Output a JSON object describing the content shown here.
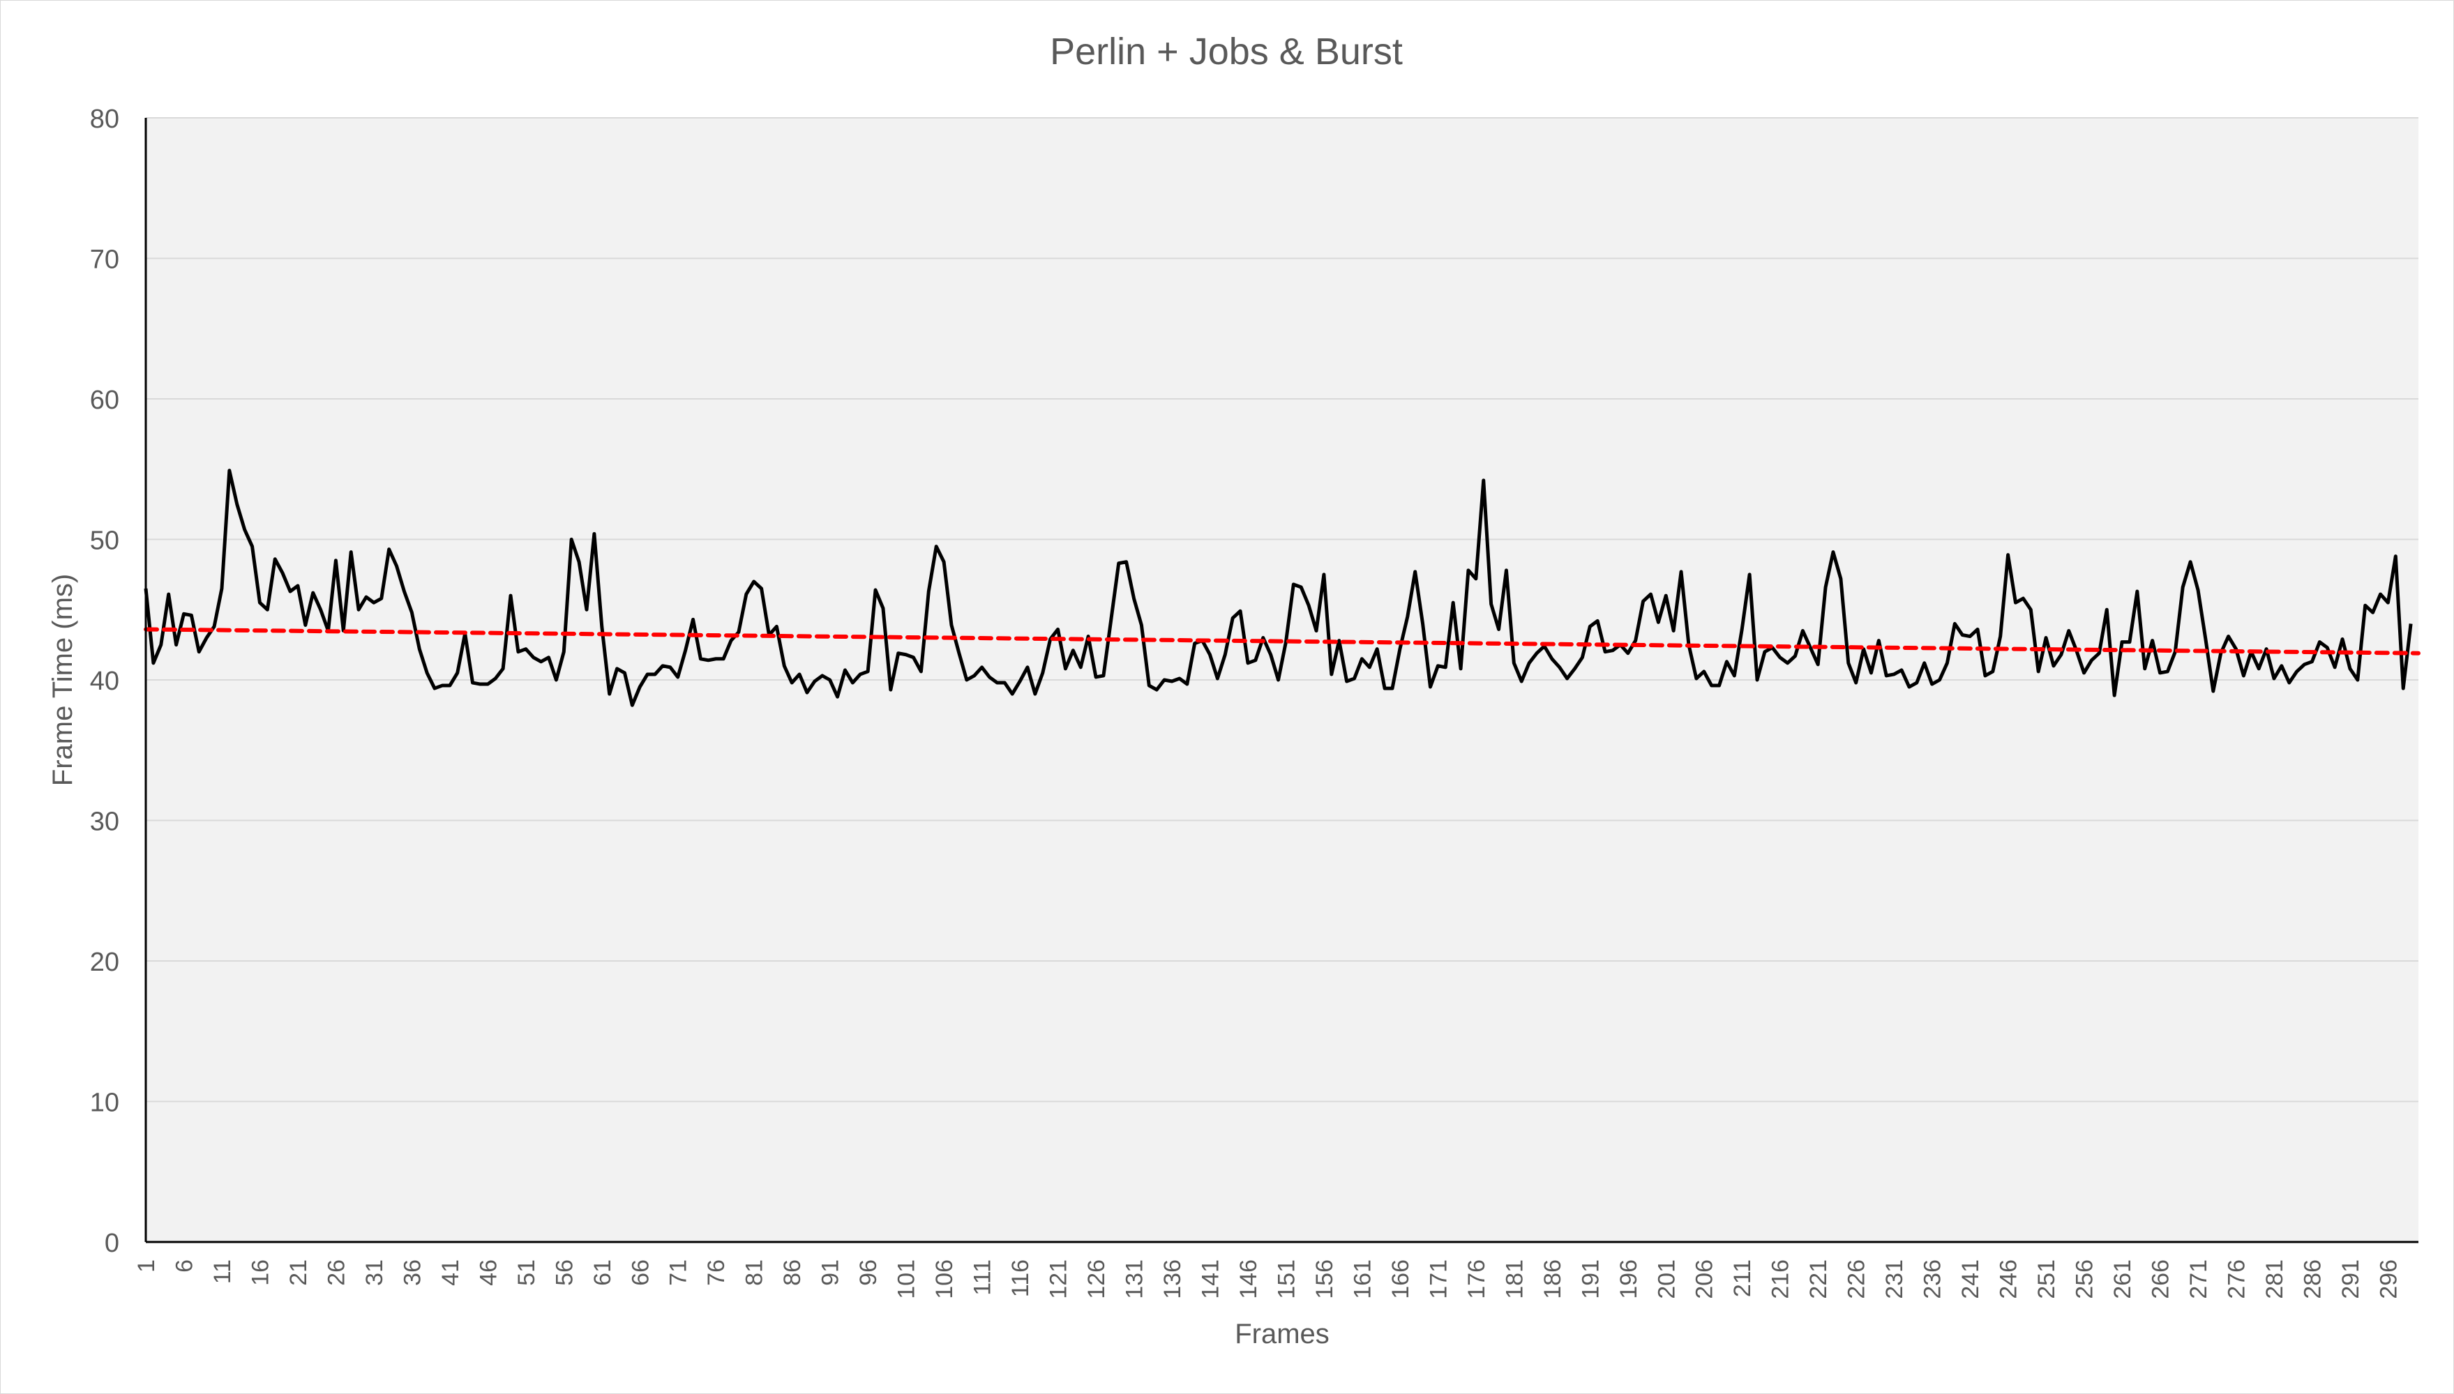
{
  "chart_data": {
    "type": "line",
    "title": "Perlin + Jobs & Burst",
    "xlabel": "Frames",
    "ylabel": "Frame Time (ms)",
    "ylim": [
      0,
      80
    ],
    "yticks": [
      0,
      10,
      20,
      30,
      40,
      50,
      60,
      70,
      80
    ],
    "xlim": [
      1,
      300
    ],
    "x_tick_labels": [
      "1",
      "6",
      "11",
      "16",
      "21",
      "26",
      "31",
      "36",
      "41",
      "46",
      "51",
      "56",
      "61",
      "66",
      "71",
      "76",
      "81",
      "86",
      "91",
      "96",
      "101",
      "106",
      "111",
      "116",
      "121",
      "126",
      "131",
      "136",
      "141",
      "146",
      "151",
      "156",
      "161",
      "166",
      "171",
      "176",
      "181",
      "186",
      "191",
      "196",
      "201",
      "206",
      "211",
      "216",
      "221",
      "226",
      "231",
      "236",
      "241",
      "246",
      "251",
      "256",
      "261",
      "266",
      "271",
      "276",
      "281",
      "286",
      "291",
      "296"
    ],
    "grid": "horizontal",
    "legend": "none",
    "colors": {
      "series": "#000000",
      "trend": "#ff0000",
      "plot_bg": "#f2f2f2",
      "grid": "#d9d9d9",
      "text": "#595959"
    },
    "series": [
      {
        "values": [
          46.5,
          41.2,
          42.5,
          46.1,
          42.5,
          44.7,
          44.6,
          42.0,
          43.0,
          43.8,
          46.5,
          54.9,
          52.5,
          50.7,
          49.5,
          45.5,
          45.0,
          48.6,
          47.6,
          46.3,
          46.7,
          43.9,
          46.2,
          45.0,
          43.5,
          48.5,
          43.5,
          49.1,
          45.0,
          45.9,
          45.5,
          45.8,
          49.3,
          48.1,
          46.3,
          44.8,
          42.2,
          40.5,
          39.4,
          39.6,
          39.6,
          40.5,
          43.3,
          39.8,
          39.7,
          39.7,
          40.1,
          40.8,
          46.0,
          42.0,
          42.2,
          41.6,
          41.3,
          41.6,
          40.0,
          42.0,
          50.0,
          48.4,
          45.0,
          50.4,
          43.8,
          39.0,
          40.8,
          40.5,
          38.2,
          39.5,
          40.4,
          40.4,
          41.0,
          40.9,
          40.2,
          42.1,
          44.3,
          41.5,
          41.4,
          41.5,
          41.5,
          42.8,
          43.4,
          46.1,
          47.0,
          46.5,
          43.2,
          43.8,
          41.0,
          39.8,
          40.4,
          39.1,
          39.9,
          40.3,
          40.0,
          38.8,
          40.7,
          39.8,
          40.4,
          40.6,
          46.4,
          45.1,
          39.3,
          41.9,
          41.8,
          41.6,
          40.6,
          46.3,
          49.5,
          48.4,
          43.9,
          41.9,
          40.0,
          40.3,
          40.9,
          40.2,
          39.8,
          39.8,
          39.0,
          39.9,
          40.9,
          39.0,
          40.5,
          42.9,
          43.6,
          40.8,
          42.1,
          40.9,
          43.1,
          40.2,
          40.3,
          44.3,
          48.3,
          48.4,
          45.8,
          43.9,
          39.6,
          39.3,
          40.0,
          39.9,
          40.1,
          39.7,
          42.6,
          42.8,
          41.8,
          40.1,
          41.8,
          44.4,
          44.9,
          41.2,
          41.4,
          43.0,
          41.8,
          40.0,
          42.7,
          46.8,
          46.6,
          45.3,
          43.5,
          47.5,
          40.4,
          42.8,
          39.9,
          40.1,
          41.5,
          40.9,
          42.2,
          39.4,
          39.4,
          42.2,
          44.5,
          47.7,
          44.0,
          39.5,
          41.0,
          40.9,
          45.5,
          40.8,
          47.8,
          47.2,
          54.2,
          45.4,
          43.6,
          47.8,
          41.2,
          39.9,
          41.2,
          41.9,
          42.4,
          41.5,
          40.9,
          40.1,
          40.8,
          41.6,
          43.8,
          44.2,
          42.0,
          42.1,
          42.5,
          41.9,
          42.8,
          45.6,
          46.1,
          44.1,
          46.0,
          43.5,
          47.7,
          42.5,
          40.1,
          40.6,
          39.6,
          39.6,
          41.3,
          40.3,
          43.6,
          47.5,
          40.0,
          42.0,
          42.3,
          41.6,
          41.2,
          41.7,
          43.5,
          42.3,
          41.1,
          46.6,
          49.1,
          47.2,
          41.2,
          39.8,
          42.2,
          40.5,
          42.8,
          40.3,
          40.4,
          40.7,
          39.5,
          39.8,
          41.2,
          39.7,
          40.0,
          41.2,
          44.0,
          43.2,
          43.1,
          43.6,
          40.3,
          40.6,
          43.1,
          48.9,
          45.5,
          45.8,
          45.0,
          40.6,
          43.0,
          41.0,
          41.8,
          43.5,
          42.1,
          40.5,
          41.4,
          41.9,
          45.0,
          38.9,
          42.7,
          42.7,
          46.3,
          40.8,
          42.8,
          40.5,
          40.6,
          42.0,
          46.6,
          48.4,
          46.4,
          42.9,
          39.2,
          41.9,
          43.1,
          42.2,
          40.3,
          42.0,
          40.8,
          42.2,
          40.1,
          41.0,
          39.8,
          40.6,
          41.1,
          41.3,
          42.7,
          42.3,
          40.9,
          42.9,
          40.8,
          40.0,
          45.3,
          44.8,
          46.1,
          45.5,
          48.8,
          39.4,
          44.0
        ]
      },
      {
        "trendline": "linear",
        "values_at_ends": [
          43.6,
          41.9
        ]
      }
    ]
  }
}
